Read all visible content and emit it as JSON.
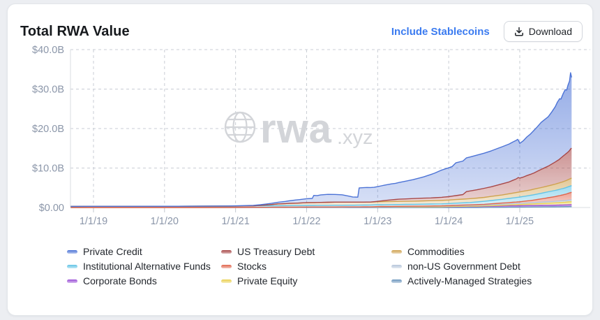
{
  "header": {
    "title": "Total RWA Value",
    "include_stablecoins_label": "Include Stablecoins",
    "download_label": "Download"
  },
  "watermark": {
    "brand": "rwa",
    "tld": ".xyz"
  },
  "legend": {
    "columns": [
      [
        {
          "label": "Private Credit",
          "key": "private_credit"
        },
        {
          "label": "Institutional Alternative Funds",
          "key": "institutional_alternative_funds"
        },
        {
          "label": "Corporate Bonds",
          "key": "corporate_bonds"
        }
      ],
      [
        {
          "label": "US Treasury Debt",
          "key": "us_treasury_debt"
        },
        {
          "label": "Stocks",
          "key": "stocks"
        },
        {
          "label": "Private Equity",
          "key": "private_equity"
        }
      ],
      [
        {
          "label": "Commodities",
          "key": "commodities"
        },
        {
          "label": "non-US Government Debt",
          "key": "non_us_government_debt"
        },
        {
          "label": "Actively-Managed Strategies",
          "key": "actively_managed_strategies"
        }
      ]
    ],
    "column_lefts": [
      85,
      306,
      550
    ]
  },
  "chart_data": {
    "type": "area",
    "subtype": "stacked",
    "title": "Total RWA Value",
    "unit": "USD billions",
    "grid": true,
    "legend_position": "bottom",
    "y_axis": {
      "range": [
        0,
        40
      ],
      "ticks": [
        {
          "label": "$40.0B",
          "value": 40
        },
        {
          "label": "$30.0B",
          "value": 30
        },
        {
          "label": "$20.0B",
          "value": 20
        },
        {
          "label": "$10.0B",
          "value": 10
        },
        {
          "label": "$0.00",
          "value": 0
        }
      ]
    },
    "x_axis": {
      "domain_years": [
        2018.676,
        2025.732
      ],
      "ticks": [
        {
          "label": "1/1/19",
          "year": 2019
        },
        {
          "label": "1/1/20",
          "year": 2020
        },
        {
          "label": "1/1/21",
          "year": 2021
        },
        {
          "label": "1/1/22",
          "year": 2022
        },
        {
          "label": "1/1/23",
          "year": 2023
        },
        {
          "label": "1/1/24",
          "year": 2024
        },
        {
          "label": "1/1/25",
          "year": 2025
        }
      ]
    },
    "stack_order_bottom_to_top": [
      "actively_managed_strategies",
      "corporate_bonds",
      "private_equity",
      "non_us_government_debt",
      "stocks",
      "institutional_alternative_funds",
      "commodities",
      "us_treasury_debt",
      "private_credit"
    ],
    "series": {
      "private_credit": {
        "name": "Private Credit",
        "color": "#4c73d6",
        "points": [
          [
            2018.68,
            0
          ],
          [
            2020.5,
            0
          ],
          [
            2021.0,
            0.05
          ],
          [
            2021.3,
            0.15
          ],
          [
            2021.5,
            0.3
          ],
          [
            2021.7,
            0.55
          ],
          [
            2021.85,
            0.8
          ],
          [
            2022.0,
            1.0
          ],
          [
            2022.08,
            1.05
          ],
          [
            2022.1,
            1.8
          ],
          [
            2022.15,
            1.75
          ],
          [
            2022.2,
            1.9
          ],
          [
            2022.3,
            2.0
          ],
          [
            2022.4,
            1.95
          ],
          [
            2022.5,
            1.85
          ],
          [
            2022.6,
            1.5
          ],
          [
            2022.65,
            1.3
          ],
          [
            2022.72,
            1.25
          ],
          [
            2022.74,
            3.6
          ],
          [
            2022.85,
            3.7
          ],
          [
            2022.95,
            3.65
          ],
          [
            2023.0,
            3.75
          ],
          [
            2023.1,
            3.9
          ],
          [
            2023.25,
            4.1
          ],
          [
            2023.4,
            4.5
          ],
          [
            2023.5,
            4.8
          ],
          [
            2023.65,
            5.4
          ],
          [
            2023.8,
            6.2
          ],
          [
            2023.9,
            6.9
          ],
          [
            2024.0,
            7.3
          ],
          [
            2024.05,
            7.5
          ],
          [
            2024.1,
            8.3
          ],
          [
            2024.2,
            8.5
          ],
          [
            2024.3,
            8.6
          ],
          [
            2024.4,
            8.8
          ],
          [
            2024.5,
            8.9
          ],
          [
            2024.6,
            9.1
          ],
          [
            2024.7,
            9.3
          ],
          [
            2024.8,
            9.5
          ],
          [
            2024.9,
            9.7
          ],
          [
            2024.97,
            9.8
          ],
          [
            2025.0,
            8.8
          ],
          [
            2025.05,
            9.2
          ],
          [
            2025.1,
            9.8
          ],
          [
            2025.15,
            10.2
          ],
          [
            2025.2,
            10.8
          ],
          [
            2025.25,
            11.3
          ],
          [
            2025.3,
            11.9
          ],
          [
            2025.35,
            12.2
          ],
          [
            2025.4,
            12.5
          ],
          [
            2025.45,
            13.2
          ],
          [
            2025.5,
            14.0
          ],
          [
            2025.53,
            14.8
          ],
          [
            2025.56,
            15.3
          ],
          [
            2025.58,
            14.9
          ],
          [
            2025.61,
            15.8
          ],
          [
            2025.64,
            16.4
          ],
          [
            2025.66,
            16.0
          ],
          [
            2025.68,
            17.0
          ],
          [
            2025.7,
            17.6
          ],
          [
            2025.715,
            19.3
          ],
          [
            2025.73,
            17.9
          ]
        ]
      },
      "us_treasury_debt": {
        "name": "US Treasury Debt",
        "color": "#a84848",
        "points": [
          [
            2018.68,
            0
          ],
          [
            2022.9,
            0
          ],
          [
            2023.0,
            0.1
          ],
          [
            2023.05,
            0.2
          ],
          [
            2023.1,
            0.3
          ],
          [
            2023.2,
            0.45
          ],
          [
            2023.3,
            0.55
          ],
          [
            2023.5,
            0.65
          ],
          [
            2023.75,
            0.7
          ],
          [
            2023.9,
            0.78
          ],
          [
            2024.0,
            0.85
          ],
          [
            2024.1,
            1.0
          ],
          [
            2024.2,
            1.15
          ],
          [
            2024.25,
            1.85
          ],
          [
            2024.3,
            1.95
          ],
          [
            2024.4,
            2.1
          ],
          [
            2024.5,
            2.3
          ],
          [
            2024.6,
            2.45
          ],
          [
            2024.75,
            2.8
          ],
          [
            2024.85,
            3.0
          ],
          [
            2024.95,
            3.45
          ],
          [
            2024.98,
            3.7
          ],
          [
            2025.0,
            3.5
          ],
          [
            2025.05,
            3.6
          ],
          [
            2025.1,
            3.8
          ],
          [
            2025.2,
            4.1
          ],
          [
            2025.3,
            4.6
          ],
          [
            2025.4,
            5.0
          ],
          [
            2025.5,
            5.6
          ],
          [
            2025.55,
            5.9
          ],
          [
            2025.6,
            6.4
          ],
          [
            2025.65,
            6.8
          ],
          [
            2025.68,
            7.0
          ],
          [
            2025.7,
            7.2
          ],
          [
            2025.715,
            7.5
          ],
          [
            2025.73,
            7.6
          ]
        ]
      },
      "commodities": {
        "name": "Commodities",
        "color": "#cfa24f",
        "points": [
          [
            2018.68,
            0
          ],
          [
            2021.25,
            0
          ],
          [
            2021.35,
            0.1
          ],
          [
            2021.5,
            0.3
          ],
          [
            2021.6,
            0.45
          ],
          [
            2021.75,
            0.55
          ],
          [
            2021.9,
            0.62
          ],
          [
            2022.0,
            0.7
          ],
          [
            2022.2,
            0.75
          ],
          [
            2022.4,
            0.8
          ],
          [
            2022.6,
            0.78
          ],
          [
            2022.8,
            0.76
          ],
          [
            2023.0,
            0.75
          ],
          [
            2023.3,
            0.78
          ],
          [
            2023.5,
            0.8
          ],
          [
            2023.75,
            0.85
          ],
          [
            2024.0,
            0.9
          ],
          [
            2024.25,
            0.95
          ],
          [
            2024.5,
            1.0
          ],
          [
            2024.75,
            1.1
          ],
          [
            2025.0,
            1.3
          ],
          [
            2025.2,
            1.4
          ],
          [
            2025.4,
            1.5
          ],
          [
            2025.5,
            1.6
          ],
          [
            2025.6,
            1.7
          ],
          [
            2025.7,
            1.85
          ],
          [
            2025.73,
            1.9
          ]
        ]
      },
      "institutional_alternative_funds": {
        "name": "Institutional Alternative Funds",
        "color": "#62c4e6",
        "points": [
          [
            2018.68,
            0.28
          ],
          [
            2019.0,
            0.3
          ],
          [
            2019.5,
            0.3
          ],
          [
            2020.0,
            0.32
          ],
          [
            2020.5,
            0.33
          ],
          [
            2021.0,
            0.35
          ],
          [
            2021.5,
            0.38
          ],
          [
            2022.0,
            0.4
          ],
          [
            2022.5,
            0.42
          ],
          [
            2023.0,
            0.45
          ],
          [
            2023.5,
            0.47
          ],
          [
            2024.0,
            0.5
          ],
          [
            2024.3,
            0.6
          ],
          [
            2024.5,
            0.75
          ],
          [
            2024.75,
            0.95
          ],
          [
            2025.0,
            1.2
          ],
          [
            2025.2,
            1.35
          ],
          [
            2025.4,
            1.5
          ],
          [
            2025.6,
            1.6
          ],
          [
            2025.73,
            1.7
          ]
        ]
      },
      "stocks": {
        "name": "Stocks",
        "color": "#e0654c",
        "points": [
          [
            2018.68,
            0
          ],
          [
            2021.0,
            0.01
          ],
          [
            2022.0,
            0.03
          ],
          [
            2023.0,
            0.05
          ],
          [
            2023.5,
            0.07
          ],
          [
            2024.0,
            0.1
          ],
          [
            2024.5,
            0.2
          ],
          [
            2024.75,
            0.3
          ],
          [
            2025.0,
            0.4
          ],
          [
            2025.15,
            0.55
          ],
          [
            2025.3,
            0.8
          ],
          [
            2025.4,
            1.0
          ],
          [
            2025.5,
            1.2
          ],
          [
            2025.6,
            1.45
          ],
          [
            2025.65,
            1.6
          ],
          [
            2025.7,
            1.8
          ],
          [
            2025.73,
            1.9
          ]
        ]
      },
      "non_us_government_debt": {
        "name": "non-US Government Debt",
        "color": "#b6c6da",
        "points": [
          [
            2018.68,
            0
          ],
          [
            2022.9,
            0
          ],
          [
            2023.0,
            0.05
          ],
          [
            2023.5,
            0.1
          ],
          [
            2024.0,
            0.15
          ],
          [
            2024.5,
            0.22
          ],
          [
            2025.0,
            0.3
          ],
          [
            2025.4,
            0.38
          ],
          [
            2025.73,
            0.45
          ]
        ]
      },
      "private_equity": {
        "name": "Private Equity",
        "color": "#ead04f",
        "points": [
          [
            2018.68,
            0
          ],
          [
            2023.9,
            0
          ],
          [
            2024.0,
            0.05
          ],
          [
            2024.5,
            0.1
          ],
          [
            2024.75,
            0.2
          ],
          [
            2025.0,
            0.3
          ],
          [
            2025.25,
            0.45
          ],
          [
            2025.5,
            0.6
          ],
          [
            2025.65,
            0.7
          ],
          [
            2025.73,
            0.8
          ]
        ]
      },
      "corporate_bonds": {
        "name": "Corporate Bonds",
        "color": "#9a4fd6",
        "points": [
          [
            2018.68,
            0
          ],
          [
            2020.9,
            0
          ],
          [
            2021.0,
            0.02
          ],
          [
            2021.5,
            0.05
          ],
          [
            2022.0,
            0.1
          ],
          [
            2022.74,
            0.12
          ],
          [
            2023.0,
            0.15
          ],
          [
            2024.0,
            0.2
          ],
          [
            2024.5,
            0.28
          ],
          [
            2025.0,
            0.35
          ],
          [
            2025.5,
            0.4
          ],
          [
            2025.73,
            0.45
          ]
        ]
      },
      "actively_managed_strategies": {
        "name": "Actively-Managed Strategies",
        "color": "#6b95bd",
        "points": [
          [
            2018.68,
            0
          ],
          [
            2024.4,
            0
          ],
          [
            2024.5,
            0.02
          ],
          [
            2024.75,
            0.05
          ],
          [
            2025.0,
            0.1
          ],
          [
            2025.3,
            0.15
          ],
          [
            2025.5,
            0.18
          ],
          [
            2025.73,
            0.25
          ]
        ]
      }
    },
    "colors": {
      "grid": "#c9cdd4",
      "axis_border": "#dadde2",
      "tick": "#c2c7cf",
      "axis_label": "#8b96a9",
      "watermark": "#d3d5d9",
      "link_accent": "#3b7bf0"
    }
  }
}
